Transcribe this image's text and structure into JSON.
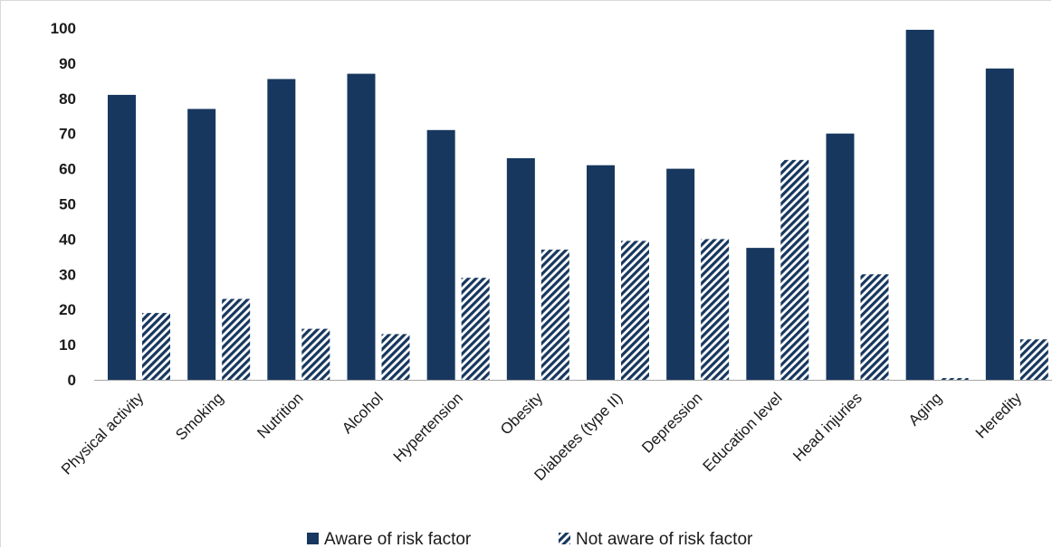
{
  "chart_data": {
    "type": "bar",
    "title": "",
    "xlabel": "",
    "ylabel": "",
    "ylim": [
      0,
      100
    ],
    "yticks": [
      "0",
      "10",
      "20",
      "30",
      "40",
      "50",
      "60",
      "70",
      "80",
      "90",
      "100"
    ],
    "grid": false,
    "legend": "bottom",
    "categories": [
      "Physical activity",
      "Smoking",
      "Nutrition",
      "Alcohol",
      "Hypertension",
      "Obesity",
      "Diabetes (type II)",
      "Depression",
      "Education level",
      "Head injuries",
      "Aging",
      "Heredity"
    ],
    "series": [
      {
        "name": "Aware of risk factor",
        "color": "#17375e",
        "pattern": "solid",
        "values": [
          81,
          77,
          85.5,
          87,
          71,
          63,
          61,
          60,
          37.5,
          70,
          99.5,
          88.5
        ]
      },
      {
        "name": "Not aware of risk factor",
        "color": "#17375e",
        "pattern": "hatched",
        "values": [
          19,
          23,
          14.5,
          13,
          29,
          37,
          39.5,
          40,
          62.5,
          30,
          0.5,
          11.5
        ]
      }
    ]
  }
}
